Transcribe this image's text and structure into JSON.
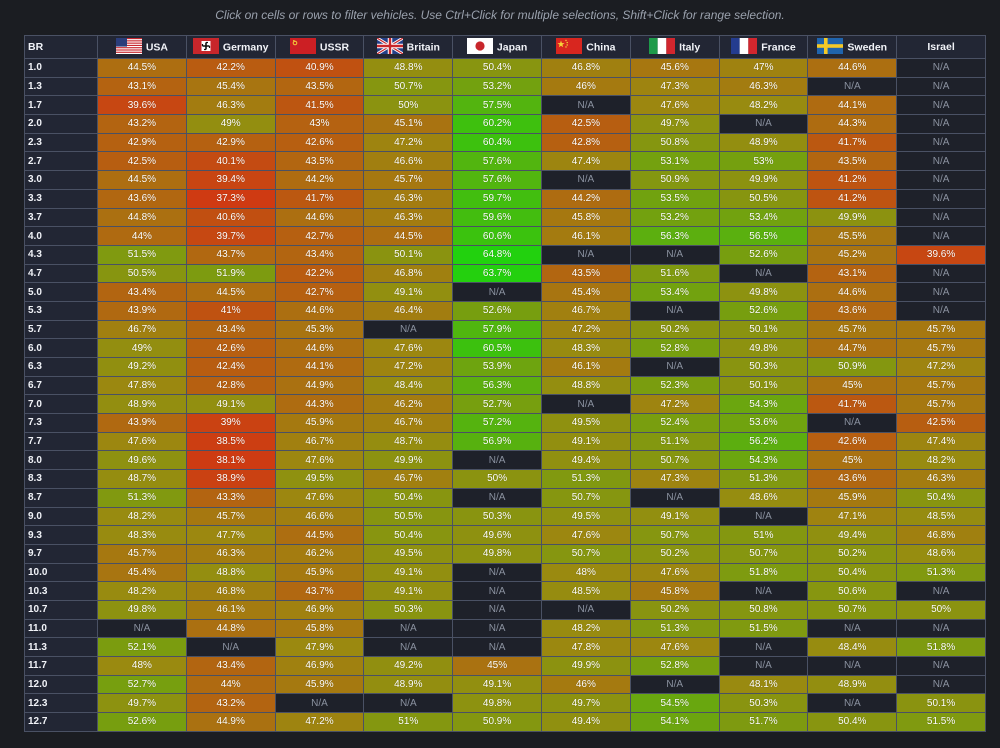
{
  "hint": "Click on cells or rows to filter vehicles. Use Ctrl+Click for multiple selections, Shift+Click for range selection.",
  "table": {
    "br_header": "BR",
    "nations": [
      {
        "id": "usa",
        "label": "USA",
        "flag": "us-flag-icon"
      },
      {
        "id": "germany",
        "label": "Germany",
        "flag": "germany-flag-icon"
      },
      {
        "id": "ussr",
        "label": "USSR",
        "flag": "ussr-flag-icon"
      },
      {
        "id": "britain",
        "label": "Britain",
        "flag": "uk-flag-icon"
      },
      {
        "id": "japan",
        "label": "Japan",
        "flag": "japan-flag-icon"
      },
      {
        "id": "china",
        "label": "China",
        "flag": "china-flag-icon"
      },
      {
        "id": "italy",
        "label": "Italy",
        "flag": "italy-flag-icon"
      },
      {
        "id": "france",
        "label": "France",
        "flag": "france-flag-icon"
      },
      {
        "id": "sweden",
        "label": "Sweden",
        "flag": "sweden-flag-icon"
      },
      {
        "id": "israel",
        "label": "Israel",
        "flag": ""
      }
    ],
    "rows": [
      {
        "br": "1.0",
        "values": [
          "44.5%",
          "42.2%",
          "40.9%",
          "48.8%",
          "50.4%",
          "46.8%",
          "45.6%",
          "47%",
          "44.6%",
          "N/A"
        ]
      },
      {
        "br": "1.3",
        "values": [
          "43.1%",
          "45.4%",
          "43.5%",
          "50.7%",
          "53.2%",
          "46%",
          "47.3%",
          "46.3%",
          "N/A",
          "N/A"
        ]
      },
      {
        "br": "1.7",
        "values": [
          "39.6%",
          "46.3%",
          "41.5%",
          "50%",
          "57.5%",
          "N/A",
          "47.6%",
          "48.2%",
          "44.1%",
          "N/A"
        ]
      },
      {
        "br": "2.0",
        "values": [
          "43.2%",
          "49%",
          "43%",
          "45.1%",
          "60.2%",
          "42.5%",
          "49.7%",
          "N/A",
          "44.3%",
          "N/A"
        ]
      },
      {
        "br": "2.3",
        "values": [
          "42.9%",
          "42.9%",
          "42.6%",
          "47.2%",
          "60.4%",
          "42.8%",
          "50.8%",
          "48.9%",
          "41.7%",
          "N/A"
        ]
      },
      {
        "br": "2.7",
        "values": [
          "42.5%",
          "40.1%",
          "43.5%",
          "46.6%",
          "57.6%",
          "47.4%",
          "53.1%",
          "53%",
          "43.5%",
          "N/A"
        ]
      },
      {
        "br": "3.0",
        "values": [
          "44.5%",
          "39.4%",
          "44.2%",
          "45.7%",
          "57.6%",
          "N/A",
          "50.9%",
          "49.9%",
          "41.2%",
          "N/A"
        ]
      },
      {
        "br": "3.3",
        "values": [
          "43.6%",
          "37.3%",
          "41.7%",
          "46.3%",
          "59.7%",
          "44.2%",
          "53.5%",
          "50.5%",
          "41.2%",
          "N/A"
        ]
      },
      {
        "br": "3.7",
        "values": [
          "44.8%",
          "40.6%",
          "44.6%",
          "46.3%",
          "59.6%",
          "45.8%",
          "53.2%",
          "53.4%",
          "49.9%",
          "N/A"
        ]
      },
      {
        "br": "4.0",
        "values": [
          "44%",
          "39.7%",
          "42.7%",
          "44.5%",
          "60.6%",
          "46.1%",
          "56.3%",
          "56.5%",
          "45.5%",
          "N/A"
        ]
      },
      {
        "br": "4.3",
        "values": [
          "51.5%",
          "43.7%",
          "43.4%",
          "50.1%",
          "64.8%",
          "N/A",
          "N/A",
          "52.6%",
          "45.2%",
          "39.6%"
        ]
      },
      {
        "br": "4.7",
        "values": [
          "50.5%",
          "51.9%",
          "42.2%",
          "46.8%",
          "63.7%",
          "43.5%",
          "51.6%",
          "N/A",
          "43.1%",
          "N/A"
        ]
      },
      {
        "br": "5.0",
        "values": [
          "43.4%",
          "44.5%",
          "42.7%",
          "49.1%",
          "N/A",
          "45.4%",
          "53.4%",
          "49.8%",
          "44.6%",
          "N/A"
        ]
      },
      {
        "br": "5.3",
        "values": [
          "43.9%",
          "41%",
          "44.6%",
          "46.4%",
          "52.6%",
          "46.7%",
          "N/A",
          "52.6%",
          "43.6%",
          "N/A"
        ]
      },
      {
        "br": "5.7",
        "values": [
          "46.7%",
          "43.4%",
          "45.3%",
          "N/A",
          "57.9%",
          "47.2%",
          "50.2%",
          "50.1%",
          "45.7%",
          "45.7%"
        ]
      },
      {
        "br": "6.0",
        "values": [
          "49%",
          "42.6%",
          "44.6%",
          "47.6%",
          "60.5%",
          "48.3%",
          "52.8%",
          "49.8%",
          "44.7%",
          "45.7%"
        ]
      },
      {
        "br": "6.3",
        "values": [
          "49.2%",
          "42.4%",
          "44.1%",
          "47.2%",
          "53.9%",
          "46.1%",
          "N/A",
          "50.3%",
          "50.9%",
          "47.2%"
        ]
      },
      {
        "br": "6.7",
        "values": [
          "47.8%",
          "42.8%",
          "44.9%",
          "48.4%",
          "56.3%",
          "48.8%",
          "52.3%",
          "50.1%",
          "45%",
          "45.7%"
        ]
      },
      {
        "br": "7.0",
        "values": [
          "48.9%",
          "49.1%",
          "44.3%",
          "46.2%",
          "52.7%",
          "N/A",
          "47.2%",
          "54.3%",
          "41.7%",
          "45.7%"
        ]
      },
      {
        "br": "7.3",
        "values": [
          "43.9%",
          "39%",
          "45.9%",
          "46.7%",
          "57.2%",
          "49.5%",
          "52.4%",
          "53.6%",
          "N/A",
          "42.5%"
        ]
      },
      {
        "br": "7.7",
        "values": [
          "47.6%",
          "38.5%",
          "46.7%",
          "48.7%",
          "56.9%",
          "49.1%",
          "51.1%",
          "56.2%",
          "42.6%",
          "47.4%"
        ]
      },
      {
        "br": "8.0",
        "values": [
          "49.6%",
          "38.1%",
          "47.6%",
          "49.9%",
          "N/A",
          "49.4%",
          "50.7%",
          "54.3%",
          "45%",
          "48.2%"
        ]
      },
      {
        "br": "8.3",
        "values": [
          "48.7%",
          "38.9%",
          "49.5%",
          "46.7%",
          "50%",
          "51.3%",
          "47.3%",
          "51.3%",
          "43.6%",
          "46.3%"
        ]
      },
      {
        "br": "8.7",
        "values": [
          "51.3%",
          "43.3%",
          "47.6%",
          "50.4%",
          "N/A",
          "50.7%",
          "N/A",
          "48.6%",
          "45.9%",
          "50.4%"
        ]
      },
      {
        "br": "9.0",
        "values": [
          "48.2%",
          "45.7%",
          "46.6%",
          "50.5%",
          "50.3%",
          "49.5%",
          "49.1%",
          "N/A",
          "47.1%",
          "48.5%"
        ]
      },
      {
        "br": "9.3",
        "values": [
          "48.3%",
          "47.7%",
          "44.5%",
          "50.4%",
          "49.6%",
          "47.6%",
          "50.7%",
          "51%",
          "49.4%",
          "46.8%"
        ]
      },
      {
        "br": "9.7",
        "values": [
          "45.7%",
          "46.3%",
          "46.2%",
          "49.5%",
          "49.8%",
          "50.7%",
          "50.2%",
          "50.7%",
          "50.2%",
          "48.6%"
        ]
      },
      {
        "br": "10.0",
        "values": [
          "45.4%",
          "48.8%",
          "45.9%",
          "49.1%",
          "N/A",
          "48%",
          "47.6%",
          "51.8%",
          "50.4%",
          "51.3%"
        ]
      },
      {
        "br": "10.3",
        "values": [
          "48.2%",
          "46.8%",
          "43.7%",
          "49.1%",
          "N/A",
          "48.5%",
          "45.8%",
          "N/A",
          "50.6%",
          "N/A"
        ]
      },
      {
        "br": "10.7",
        "values": [
          "49.8%",
          "46.1%",
          "46.9%",
          "50.3%",
          "N/A",
          "N/A",
          "50.2%",
          "50.8%",
          "50.7%",
          "50%"
        ]
      },
      {
        "br": "11.0",
        "values": [
          "N/A",
          "44.8%",
          "45.8%",
          "N/A",
          "N/A",
          "48.2%",
          "51.3%",
          "51.5%",
          "N/A",
          "N/A"
        ]
      },
      {
        "br": "11.3",
        "values": [
          "52.1%",
          "N/A",
          "47.9%",
          "N/A",
          "N/A",
          "47.8%",
          "47.6%",
          "N/A",
          "48.4%",
          "51.8%"
        ]
      },
      {
        "br": "11.7",
        "values": [
          "48%",
          "43.4%",
          "46.9%",
          "49.2%",
          "45%",
          "49.9%",
          "52.8%",
          "N/A",
          "N/A",
          "N/A"
        ]
      },
      {
        "br": "12.0",
        "values": [
          "52.7%",
          "44%",
          "45.9%",
          "48.9%",
          "49.1%",
          "46%",
          "N/A",
          "48.1%",
          "48.9%",
          "N/A"
        ]
      },
      {
        "br": "12.3",
        "values": [
          "49.7%",
          "43.2%",
          "N/A",
          "N/A",
          "49.8%",
          "49.7%",
          "54.5%",
          "50.3%",
          "N/A",
          "50.1%"
        ]
      },
      {
        "br": "12.7",
        "values": [
          "52.6%",
          "44.9%",
          "47.2%",
          "51%",
          "50.9%",
          "49.4%",
          "54.1%",
          "51.7%",
          "50.4%",
          "51.5%"
        ]
      }
    ]
  },
  "colors": {
    "na_bg": "#1e212a",
    "header_bg": "#222634",
    "grid": "#4a5164",
    "low": "#cf3a12",
    "mid": "#9a8a10",
    "high": "#22d10e"
  }
}
